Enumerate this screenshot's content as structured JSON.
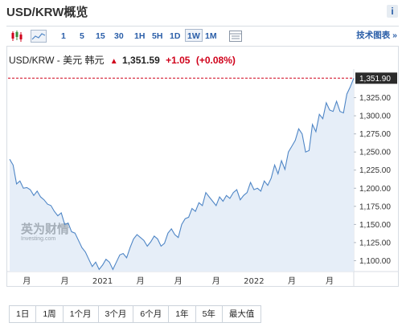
{
  "header": {
    "title": "USD/KRW概览",
    "info_icon": "i"
  },
  "toolbar": {
    "icons": [
      "candlestick-icon",
      "area-chart-icon",
      "grid-settings-icon"
    ],
    "intervals": [
      "1",
      "5",
      "15",
      "30",
      "1H",
      "5H",
      "1D",
      "1W",
      "1M"
    ],
    "active_interval": "1W",
    "tech_chart_label": "技术图表 »"
  },
  "quote": {
    "pair_label": "USD/KRW - 美元 韩元",
    "price": "1,351.59",
    "change": "+1.05",
    "change_pct": "(+0.08%)",
    "direction": "up",
    "color_up": "#d0021b"
  },
  "watermark": {
    "logo_text": "英为财情",
    "sub_text": "Investing.com"
  },
  "chart_data": {
    "type": "area",
    "title": "",
    "xlabel": "",
    "ylabel": "",
    "ylim": [
      1085,
      1360
    ],
    "y_ticks": [
      "1,100.00",
      "1,125.00",
      "1,150.00",
      "1,175.00",
      "1,200.00",
      "1,225.00",
      "1,250.00",
      "1,275.00",
      "1,300.00",
      "1,325.00"
    ],
    "y_tick_values": [
      1100,
      1125,
      1150,
      1175,
      1200,
      1225,
      1250,
      1275,
      1300,
      1325
    ],
    "x_ticks": [
      "月",
      "月",
      "2021",
      "月",
      "月",
      "月",
      "2022",
      "月",
      "月"
    ],
    "x_tick_index": [
      5,
      16,
      27,
      38,
      49,
      60,
      71,
      82,
      93
    ],
    "last_value_label": "1,351.90",
    "last_value": 1351.9,
    "line_color": "#4f86c6",
    "fill_color": "#e6eef8",
    "reference_line_color": "#d0021b",
    "series": [
      {
        "values": [
          1240,
          1232,
          1206,
          1210,
          1200,
          1201,
          1198,
          1190,
          1196,
          1188,
          1184,
          1178,
          1176,
          1168,
          1162,
          1166,
          1150,
          1152,
          1140,
          1138,
          1128,
          1118,
          1112,
          1102,
          1092,
          1098,
          1088,
          1094,
          1102,
          1098,
          1088,
          1098,
          1108,
          1110,
          1104,
          1118,
          1130,
          1136,
          1132,
          1128,
          1120,
          1126,
          1134,
          1130,
          1120,
          1124,
          1138,
          1144,
          1136,
          1132,
          1150,
          1158,
          1160,
          1172,
          1168,
          1180,
          1176,
          1194,
          1188,
          1182,
          1176,
          1188,
          1182,
          1190,
          1186,
          1194,
          1198,
          1184,
          1190,
          1194,
          1208,
          1198,
          1200,
          1196,
          1210,
          1204,
          1214,
          1232,
          1220,
          1238,
          1226,
          1250,
          1258,
          1266,
          1282,
          1275,
          1250,
          1252,
          1288,
          1278,
          1302,
          1296,
          1318,
          1308,
          1306,
          1320,
          1306,
          1304,
          1330,
          1340,
          1351.9
        ]
      }
    ]
  },
  "range_buttons": [
    "1日",
    "1周",
    "1个月",
    "3个月",
    "6个月",
    "1年",
    "5年",
    "最大值"
  ]
}
